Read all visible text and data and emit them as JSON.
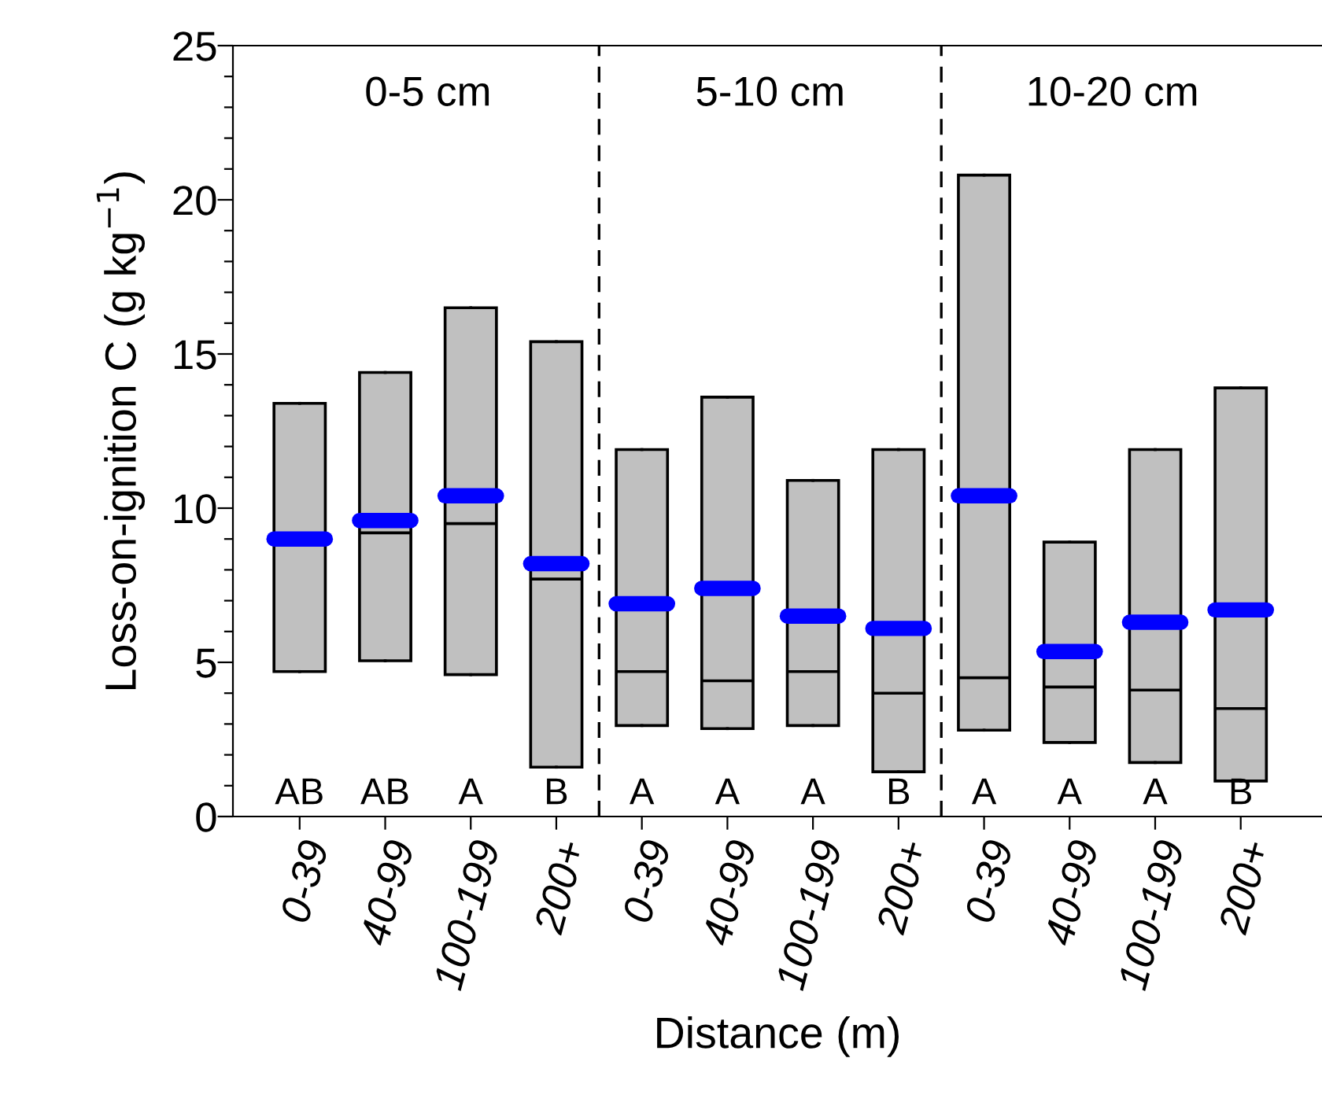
{
  "chart_data": {
    "type": "box",
    "xlabel": "Distance (m)",
    "ylabel": "Loss-on-ignition C (g kg$^{−1}$)",
    "categories": [
      "0-39",
      "40-99",
      "100-199",
      "200+",
      "0-39",
      "40-99",
      "100-199",
      "200+",
      "0-39",
      "40-99",
      "100-199",
      "200+"
    ],
    "series": [
      {
        "color": "#c0c0c0",
        "boxes": [
          {
            "low": 4.7,
            "q1": 4.7,
            "median": 9.0,
            "q3": 13.4,
            "high": 13.4,
            "mean": 9.0
          },
          {
            "low": 5.05,
            "q1": 5.05,
            "median": 9.2,
            "q3": 14.4,
            "high": 14.4,
            "mean": 9.6
          },
          {
            "low": 4.6,
            "q1": 4.6,
            "median": 9.5,
            "q3": 16.5,
            "high": 16.5,
            "mean": 10.4
          },
          {
            "low": 1.6,
            "q1": 1.6,
            "median": 7.7,
            "q3": 15.4,
            "high": 15.4,
            "mean": 8.2
          },
          {
            "low": 2.95,
            "q1": 2.95,
            "median": 4.7,
            "q3": 11.9,
            "high": 11.9,
            "mean": 6.9
          },
          {
            "low": 2.85,
            "q1": 2.85,
            "median": 4.4,
            "q3": 13.6,
            "high": 13.6,
            "mean": 7.4
          },
          {
            "low": 2.95,
            "q1": 2.95,
            "median": 4.7,
            "q3": 10.9,
            "high": 10.9,
            "mean": 6.5
          },
          {
            "low": 1.45,
            "q1": 1.45,
            "median": 4.0,
            "q3": 11.9,
            "high": 11.9,
            "mean": 6.1
          },
          {
            "low": 2.8,
            "q1": 2.8,
            "median": 4.5,
            "q3": 20.8,
            "high": 20.8,
            "mean": 10.4
          },
          {
            "low": 2.4,
            "q1": 2.4,
            "median": 4.2,
            "q3": 8.9,
            "high": 8.9,
            "mean": 5.35
          },
          {
            "low": 1.75,
            "q1": 1.75,
            "median": 4.1,
            "q3": 11.9,
            "high": 11.9,
            "mean": 6.3
          },
          {
            "low": 1.15,
            "q1": 1.15,
            "median": 3.5,
            "q3": 13.9,
            "high": 13.9,
            "mean": 6.7
          }
        ]
      }
    ],
    "ylim": [
      0,
      25
    ],
    "yticks": [
      0,
      {
        "value": 1,
        "label": null
      },
      {
        "value": 2,
        "label": null
      },
      {
        "value": 3,
        "label": null
      },
      {
        "value": 4,
        "label": null
      },
      5,
      {
        "value": 6,
        "label": null
      },
      {
        "value": 7,
        "label": null
      },
      {
        "value": 8,
        "label": null
      },
      {
        "value": 9,
        "label": null
      },
      10,
      {
        "value": 11,
        "label": null
      },
      {
        "value": 12,
        "label": null
      },
      {
        "value": 13,
        "label": null
      },
      {
        "value": 14,
        "label": null
      },
      15,
      {
        "value": 16,
        "label": null
      },
      {
        "value": 17,
        "label": null
      },
      {
        "value": 18,
        "label": null
      },
      {
        "value": 19,
        "label": null
      },
      20,
      {
        "value": 21,
        "label": null
      },
      {
        "value": 22,
        "label": null
      },
      {
        "value": 23,
        "label": null
      },
      {
        "value": 24,
        "label": null
      },
      25
    ],
    "annotations": [
      "0-5 cm",
      "5-10 cm",
      "10-20 cm",
      "AB",
      "AB",
      "A",
      "B",
      "A",
      "A",
      "A",
      "B",
      "A",
      "A",
      "A",
      "B"
    ],
    "grid": false,
    "legend": false
  }
}
